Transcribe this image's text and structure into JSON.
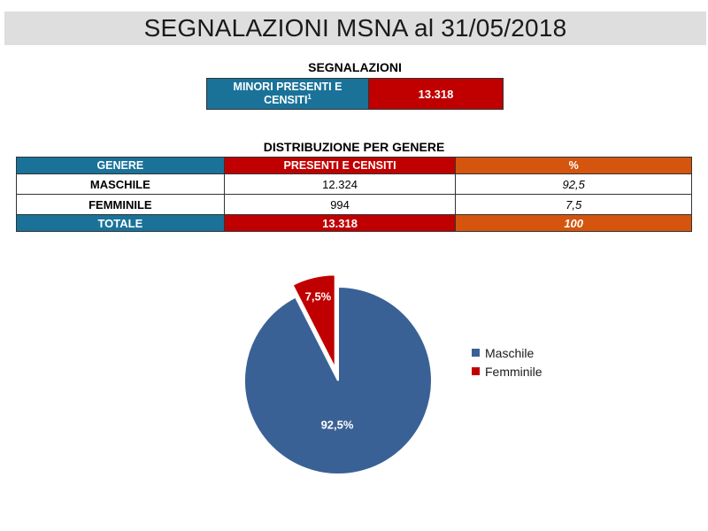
{
  "title": "SEGNALAZIONI MSNA al 31/05/2018",
  "segnalazioni": {
    "heading": "SEGNALAZIONI",
    "label": "MINORI PRESENTI E CENSITI",
    "footnote": "1",
    "value": "13.318"
  },
  "distribuzione": {
    "heading": "DISTRIBUZIONE PER GENERE",
    "headers": [
      "GENERE",
      "PRESENTI E CENSITI",
      "%"
    ],
    "rows": [
      {
        "genere": "MASCHILE",
        "valore": "12.324",
        "pct": "92,5"
      },
      {
        "genere": "FEMMINILE",
        "valore": "994",
        "pct": "7,5"
      }
    ],
    "totale": {
      "genere": "TOTALE",
      "valore": "13.318",
      "pct": "100"
    }
  },
  "colors": {
    "blue_header": "#1a7299",
    "red_header": "#c00000",
    "orange_header": "#d5550e",
    "pie_maschile": "#3a6195",
    "pie_femminile": "#c00000"
  },
  "chart_data": {
    "type": "pie",
    "title": "",
    "slices": [
      {
        "label": "Maschile",
        "value": 92.5,
        "data_label": "92,5%",
        "color": "#3a6195"
      },
      {
        "label": "Femminile",
        "value": 7.5,
        "data_label": "7,5%",
        "color": "#c00000",
        "exploded": true
      }
    ],
    "legend_position": "right"
  }
}
